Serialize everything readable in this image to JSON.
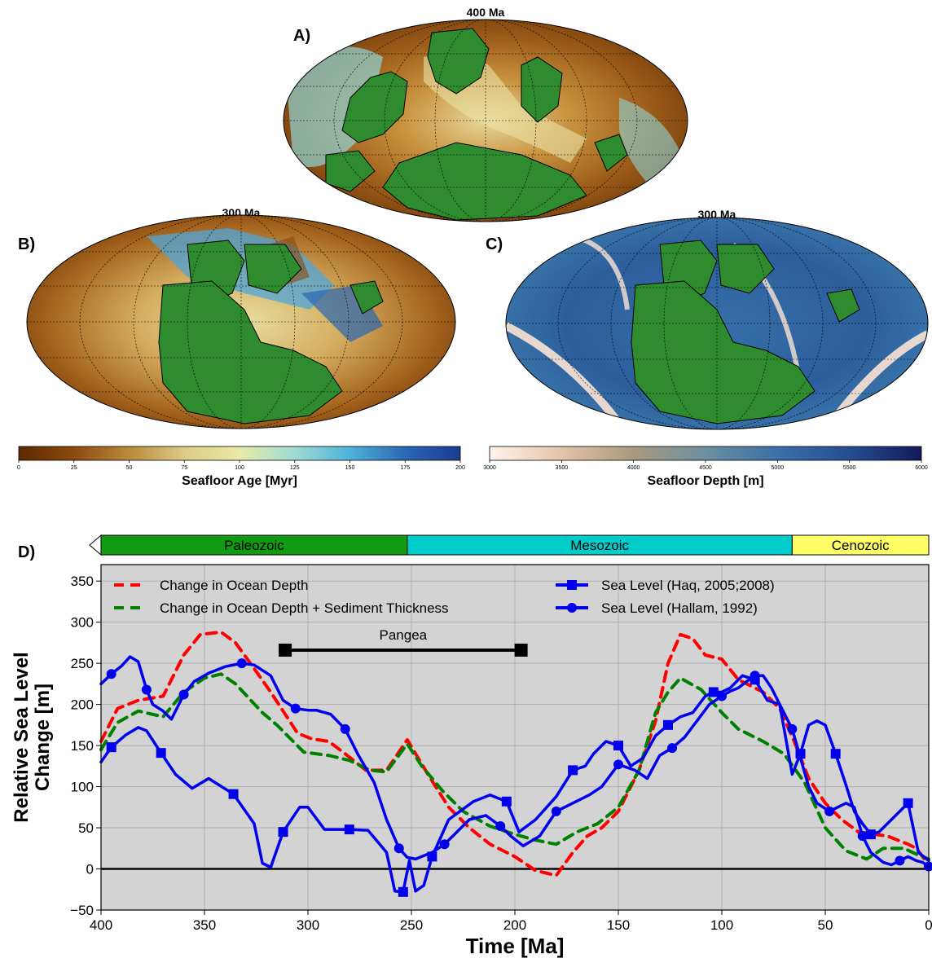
{
  "panels": {
    "A": {
      "letter": "A)",
      "title": "400 Ma"
    },
    "B": {
      "letter": "B)",
      "title": "300 Ma"
    },
    "C": {
      "letter": "C)",
      "title": "300 Ma"
    },
    "D": {
      "letter": "D)"
    }
  },
  "colorbars": {
    "age": {
      "label": "Seafloor Age [Myr]",
      "ticks": [
        "0",
        "25",
        "50",
        "75",
        "100",
        "125",
        "150",
        "175",
        "200"
      ],
      "range": [
        0,
        200
      ],
      "colors": [
        "#5a2a00",
        "#8b4a0e",
        "#b98a3c",
        "#ddcb86",
        "#e9eaa8",
        "#9fdbd5",
        "#4fb2d8",
        "#2a67b4",
        "#1b3b8f"
      ]
    },
    "depth": {
      "label": "Seafloor Depth [m]",
      "ticks": [
        "3000",
        "3500",
        "4000",
        "4500",
        "5000",
        "5500",
        "6000"
      ],
      "range": [
        3000,
        6000
      ],
      "colors": [
        "#fff3ec",
        "#e6c3a8",
        "#a89a7e",
        "#6c8fa0",
        "#3a70a8",
        "#254d93",
        "#141a56"
      ]
    }
  },
  "eras": [
    {
      "name": "Paleozoic",
      "start": 400,
      "end": 252,
      "color": "#109b10"
    },
    {
      "name": "Mesozoic",
      "start": 252,
      "end": 66,
      "color": "#00cccc"
    },
    {
      "name": "Cenozoic",
      "start": 66,
      "end": 0,
      "color": "#ffff66"
    }
  ],
  "chart_data": {
    "type": "line",
    "xlabel": "Time [Ma]",
    "ylabel": "Relative Sea Level Change [m]",
    "xlim": [
      400,
      0
    ],
    "ylim": [
      -50,
      370
    ],
    "xticks": [
      400,
      350,
      300,
      250,
      200,
      150,
      100,
      50,
      0
    ],
    "yticks": [
      -50,
      0,
      50,
      100,
      150,
      200,
      250,
      300,
      350
    ],
    "grid": true,
    "legend_position": "top",
    "background": "#d3d3d3",
    "annotation": {
      "label": "Pangea",
      "x_start": 311,
      "x_end": 197,
      "y": 266
    },
    "series": [
      {
        "name": "Change in Ocean Depth",
        "color": "#ff0000",
        "style": "dashed",
        "x": [
          400,
          392,
          382,
          370,
          360,
          352,
          342,
          335,
          325,
          318,
          305,
          298,
          290,
          282,
          272,
          262,
          252,
          242,
          232,
          222,
          212,
          200,
          190,
          180,
          172,
          165,
          158,
          150,
          140,
          132,
          126,
          120,
          114,
          108,
          100,
          92,
          80,
          72,
          65,
          58,
          50,
          42,
          34,
          26,
          20,
          15,
          10,
          6,
          3,
          0
        ],
        "y": [
          155,
          195,
          205,
          210,
          260,
          285,
          288,
          275,
          240,
          215,
          165,
          158,
          155,
          140,
          120,
          120,
          157,
          115,
          75,
          50,
          30,
          15,
          -2,
          -8,
          20,
          40,
          50,
          70,
          120,
          180,
          250,
          285,
          280,
          260,
          255,
          230,
          215,
          195,
          155,
          110,
          80,
          60,
          45,
          42,
          40,
          35,
          30,
          25,
          15,
          5
        ]
      },
      {
        "name": "Change in Ocean Depth + Sediment Thickness",
        "color": "#008000",
        "style": "dashed",
        "x": [
          400,
          392,
          382,
          370,
          360,
          350,
          342,
          335,
          322,
          315,
          302,
          290,
          280,
          270,
          262,
          252,
          245,
          235,
          225,
          212,
          200,
          190,
          180,
          170,
          160,
          150,
          140,
          132,
          126,
          120,
          110,
          100,
          92,
          80,
          70,
          60,
          50,
          40,
          30,
          22,
          12,
          6,
          0
        ],
        "y": [
          145,
          178,
          192,
          185,
          215,
          232,
          237,
          225,
          190,
          175,
          142,
          138,
          132,
          120,
          118,
          152,
          125,
          95,
          70,
          52,
          42,
          35,
          30,
          45,
          55,
          75,
          120,
          190,
          215,
          232,
          218,
          190,
          170,
          155,
          140,
          105,
          50,
          22,
          12,
          25,
          25,
          18,
          12
        ]
      },
      {
        "name": "Sea Level (Haq, 2005;2008)",
        "color": "#0000ee",
        "style": "solid",
        "marker": "square",
        "x": [
          400,
          395,
          388,
          382,
          378,
          371,
          364,
          356,
          348,
          336,
          326,
          322,
          318,
          312,
          304,
          300,
          292,
          280,
          271,
          262,
          258,
          254,
          251,
          248,
          244,
          240,
          232,
          220,
          212,
          204,
          198,
          190,
          180,
          172,
          166,
          162,
          156,
          150,
          144,
          138,
          132,
          126,
          120,
          114,
          108,
          104,
          100,
          96,
          90,
          84,
          78,
          72,
          66,
          62,
          58,
          54,
          50,
          45,
          40,
          36,
          32,
          28,
          24,
          20,
          16,
          10,
          5,
          0
        ],
        "y": [
          130,
          148,
          163,
          172,
          168,
          141,
          115,
          98,
          110,
          91,
          55,
          7,
          2,
          45,
          75,
          75,
          48,
          48,
          47,
          20,
          -27,
          -28,
          10,
          -27,
          -20,
          15,
          60,
          82,
          90,
          82,
          45,
          60,
          88,
          120,
          125,
          140,
          155,
          150,
          125,
          135,
          162,
          175,
          185,
          190,
          210,
          215,
          215,
          220,
          235,
          230,
          205,
          200,
          115,
          140,
          175,
          180,
          175,
          140,
          102,
          70,
          55,
          42,
          45,
          55,
          65,
          80,
          20,
          10
        ]
      },
      {
        "name": "Sea Level (Hallam, 1992)",
        "color": "#0000ee",
        "style": "solid",
        "marker": "circle",
        "x": [
          400,
          395,
          390,
          386,
          382,
          378,
          375,
          370,
          366,
          360,
          355,
          348,
          340,
          332,
          326,
          318,
          312,
          306,
          300,
          296,
          289,
          282,
          276,
          268,
          262,
          256,
          252,
          248,
          240,
          234,
          228,
          222,
          214,
          207,
          202,
          196,
          188,
          180,
          172,
          164,
          158,
          150,
          142,
          136,
          130,
          124,
          118,
          112,
          106,
          100,
          96,
          92,
          88,
          84,
          80,
          76,
          72,
          66,
          62,
          58,
          54,
          48,
          44,
          40,
          36,
          32,
          28,
          22,
          18,
          14,
          10,
          6,
          3,
          0
        ],
        "y": [
          225,
          237,
          247,
          258,
          252,
          218,
          200,
          192,
          182,
          212,
          228,
          238,
          246,
          250,
          248,
          235,
          205,
          195,
          193,
          193,
          188,
          170,
          140,
          105,
          60,
          25,
          14,
          12,
          20,
          30,
          45,
          60,
          65,
          52,
          40,
          28,
          40,
          70,
          80,
          90,
          100,
          127,
          120,
          110,
          138,
          147,
          160,
          180,
          200,
          210,
          216,
          220,
          228,
          235,
          235,
          220,
          200,
          170,
          135,
          100,
          80,
          70,
          75,
          80,
          75,
          40,
          20,
          8,
          5,
          10,
          15,
          10,
          8,
          3
        ]
      }
    ]
  }
}
